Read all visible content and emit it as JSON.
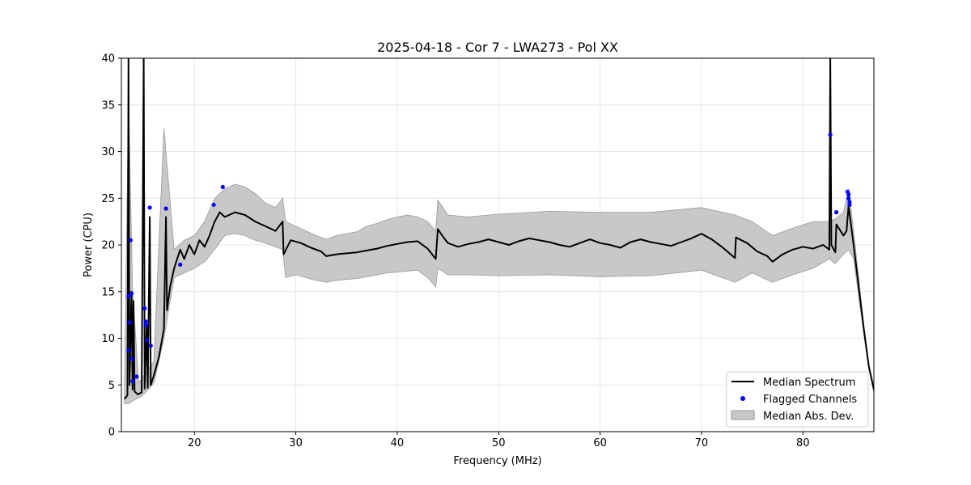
{
  "chart_data": {
    "type": "line",
    "title": "2025-04-18 - Cor 7 - LWA273 - Pol XX",
    "xlabel": "Frequency (MHz)",
    "ylabel": "Power (CPU)",
    "xlim": [
      12.8,
      87.0
    ],
    "ylim": [
      0,
      40
    ],
    "xticks": [
      20,
      30,
      40,
      50,
      60,
      70,
      80
    ],
    "xtick_labels": [
      "20",
      "30",
      "40",
      "50",
      "60",
      "70",
      "80"
    ],
    "yticks": [
      0,
      5,
      10,
      15,
      20,
      25,
      30,
      35,
      40
    ],
    "ytick_labels": [
      "0",
      "5",
      "10",
      "15",
      "20",
      "25",
      "30",
      "35",
      "40"
    ],
    "grid": true,
    "legend_position": "lower-right",
    "colors": {
      "median": "#000000",
      "flagged": "#0000ff",
      "mad": "#c8c8c8",
      "mad_edge": "#999999",
      "grid": "#e6e6e6"
    },
    "series": [
      {
        "name": "Median Spectrum",
        "kind": "line",
        "points": [
          [
            13.1,
            3.5
          ],
          [
            13.4,
            3.9
          ],
          [
            13.5,
            40
          ],
          [
            13.6,
            5.0
          ],
          [
            13.8,
            15.0
          ],
          [
            13.9,
            4.5
          ],
          [
            14.0,
            14.0
          ],
          [
            14.1,
            4.3
          ],
          [
            14.4,
            4.0
          ],
          [
            14.8,
            4.2
          ],
          [
            15.0,
            40
          ],
          [
            15.1,
            4.6
          ],
          [
            15.3,
            11.5
          ],
          [
            15.4,
            4.7
          ],
          [
            15.6,
            23.0
          ],
          [
            15.7,
            5.0
          ],
          [
            16.0,
            6.0
          ],
          [
            16.5,
            8.0
          ],
          [
            17.0,
            11.0
          ],
          [
            17.2,
            23.0
          ],
          [
            17.3,
            13.0
          ],
          [
            17.6,
            15.5
          ],
          [
            18.0,
            17.5
          ],
          [
            18.6,
            19.5
          ],
          [
            19.0,
            18.5
          ],
          [
            19.5,
            20.0
          ],
          [
            20.0,
            19.0
          ],
          [
            20.5,
            20.5
          ],
          [
            21.0,
            19.8
          ],
          [
            21.5,
            21.0
          ],
          [
            22.0,
            22.5
          ],
          [
            22.5,
            23.5
          ],
          [
            23.0,
            23.0
          ],
          [
            24.0,
            23.5
          ],
          [
            25.0,
            23.2
          ],
          [
            26.0,
            22.5
          ],
          [
            27.0,
            22.0
          ],
          [
            28.0,
            21.5
          ],
          [
            28.7,
            22.5
          ],
          [
            28.8,
            19.0
          ],
          [
            29.5,
            20.5
          ],
          [
            30.5,
            20.2
          ],
          [
            31.5,
            19.7
          ],
          [
            32.5,
            19.3
          ],
          [
            33.0,
            18.8
          ],
          [
            34.0,
            19.0
          ],
          [
            35.0,
            19.1
          ],
          [
            36.0,
            19.2
          ],
          [
            37.0,
            19.4
          ],
          [
            38.0,
            19.6
          ],
          [
            39.0,
            19.9
          ],
          [
            40.0,
            20.1
          ],
          [
            41.0,
            20.3
          ],
          [
            42.0,
            20.4
          ],
          [
            43.0,
            19.6
          ],
          [
            43.8,
            18.5
          ],
          [
            44.0,
            21.7
          ],
          [
            44.5,
            20.9
          ],
          [
            45.0,
            20.2
          ],
          [
            46.0,
            19.8
          ],
          [
            47.0,
            20.1
          ],
          [
            48.0,
            20.3
          ],
          [
            49.0,
            20.6
          ],
          [
            50.0,
            20.3
          ],
          [
            51.0,
            20.0
          ],
          [
            52.0,
            20.4
          ],
          [
            53.0,
            20.7
          ],
          [
            54.0,
            20.5
          ],
          [
            55.0,
            20.3
          ],
          [
            56.0,
            20.0
          ],
          [
            57.0,
            19.8
          ],
          [
            58.0,
            20.2
          ],
          [
            59.0,
            20.6
          ],
          [
            60.0,
            20.2
          ],
          [
            61.0,
            20.0
          ],
          [
            62.0,
            19.7
          ],
          [
            63.0,
            20.3
          ],
          [
            64.0,
            20.6
          ],
          [
            65.0,
            20.3
          ],
          [
            66.0,
            20.1
          ],
          [
            67.0,
            19.9
          ],
          [
            68.0,
            20.3
          ],
          [
            69.0,
            20.7
          ],
          [
            70.0,
            21.2
          ],
          [
            71.0,
            20.6
          ],
          [
            72.0,
            19.8
          ],
          [
            73.3,
            18.6
          ],
          [
            73.4,
            20.8
          ],
          [
            74.5,
            20.2
          ],
          [
            75.5,
            19.3
          ],
          [
            76.5,
            18.8
          ],
          [
            77.0,
            18.2
          ],
          [
            78.0,
            19.0
          ],
          [
            79.0,
            19.5
          ],
          [
            80.0,
            19.8
          ],
          [
            81.0,
            19.6
          ],
          [
            82.0,
            20.0
          ],
          [
            82.6,
            19.5
          ],
          [
            82.7,
            40
          ],
          [
            82.8,
            20.0
          ],
          [
            83.2,
            19.2
          ],
          [
            83.3,
            22.2
          ],
          [
            84.0,
            21.0
          ],
          [
            84.3,
            21.5
          ],
          [
            84.5,
            24.2
          ],
          [
            85.0,
            20.0
          ],
          [
            85.5,
            15.5
          ],
          [
            86.0,
            11.0
          ],
          [
            86.5,
            7.0
          ],
          [
            87.0,
            4.5
          ]
        ]
      },
      {
        "name": "Flagged Channels",
        "kind": "scatter",
        "points": [
          [
            13.5,
            14.5
          ],
          [
            13.6,
            11.7
          ],
          [
            13.5,
            8.7
          ],
          [
            13.7,
            20.5
          ],
          [
            13.8,
            14.8
          ],
          [
            13.8,
            7.8
          ],
          [
            13.9,
            5.4
          ],
          [
            14.3,
            5.9
          ],
          [
            15.1,
            13.2
          ],
          [
            15.2,
            11.8
          ],
          [
            15.2,
            11.4
          ],
          [
            15.3,
            9.8
          ],
          [
            15.6,
            24.0
          ],
          [
            15.7,
            9.2
          ],
          [
            17.2,
            23.9
          ],
          [
            18.6,
            17.9
          ],
          [
            21.9,
            24.3
          ],
          [
            22.8,
            26.2
          ],
          [
            82.7,
            31.8
          ],
          [
            83.3,
            23.5
          ],
          [
            84.4,
            25.7
          ],
          [
            84.5,
            25.4
          ],
          [
            84.5,
            25.0
          ],
          [
            84.6,
            24.6
          ],
          [
            84.6,
            24.3
          ]
        ]
      },
      {
        "name": "Median Abs. Dev.",
        "kind": "band",
        "x": [
          13.1,
          13.5,
          13.9,
          14.5,
          15.0,
          16.0,
          17.0,
          18.0,
          19.0,
          20.0,
          21.0,
          22.0,
          23.0,
          24.0,
          25.0,
          26.0,
          27.0,
          28.0,
          28.7,
          29.0,
          30.0,
          31.0,
          32.0,
          33.0,
          34.0,
          35.0,
          36.0,
          37.0,
          38.0,
          39.0,
          40.0,
          41.0,
          42.0,
          43.0,
          43.8,
          44.0,
          45.0,
          47.0,
          50.0,
          55.0,
          60.0,
          65.0,
          70.0,
          73.3,
          75.0,
          77.0,
          79.0,
          81.0,
          82.6,
          83.2,
          84.0,
          84.5,
          85.0,
          85.5,
          86.0,
          86.5,
          87.0
        ],
        "lower": [
          3.0,
          3.0,
          3.3,
          3.6,
          4.0,
          5.2,
          10.0,
          16.5,
          17.0,
          17.5,
          18.2,
          19.5,
          21.0,
          21.2,
          21.0,
          20.5,
          20.2,
          19.8,
          19.5,
          16.5,
          16.8,
          16.5,
          16.2,
          16.0,
          16.2,
          16.3,
          16.4,
          16.6,
          16.8,
          17.0,
          17.1,
          17.2,
          17.3,
          16.5,
          15.5,
          17.5,
          16.8,
          16.8,
          16.7,
          16.8,
          16.6,
          16.7,
          17.3,
          16.0,
          17.0,
          16.0,
          16.8,
          17.5,
          18.5,
          18.0,
          19.0,
          19.5,
          18.5,
          14.5,
          10.5,
          6.8,
          4.2
        ],
        "upper": [
          4.5,
          35.5,
          15.5,
          5.2,
          6.0,
          7.5,
          32.5,
          19.5,
          20.5,
          21.0,
          22.5,
          25.0,
          26.0,
          26.5,
          26.2,
          25.5,
          24.5,
          24.0,
          25.0,
          22.5,
          22.0,
          21.5,
          21.0,
          20.6,
          21.0,
          21.2,
          21.4,
          22.0,
          22.3,
          22.7,
          23.0,
          23.2,
          23.0,
          22.5,
          21.5,
          24.8,
          23.2,
          23.0,
          23.3,
          23.6,
          23.5,
          23.5,
          24.0,
          23.2,
          22.5,
          21.0,
          21.8,
          22.5,
          22.5,
          22.8,
          23.5,
          26.0,
          21.5,
          16.5,
          11.5,
          7.2,
          4.7
        ]
      }
    ],
    "legend": [
      "Median Spectrum",
      "Flagged Channels",
      "Median Abs. Dev."
    ]
  }
}
